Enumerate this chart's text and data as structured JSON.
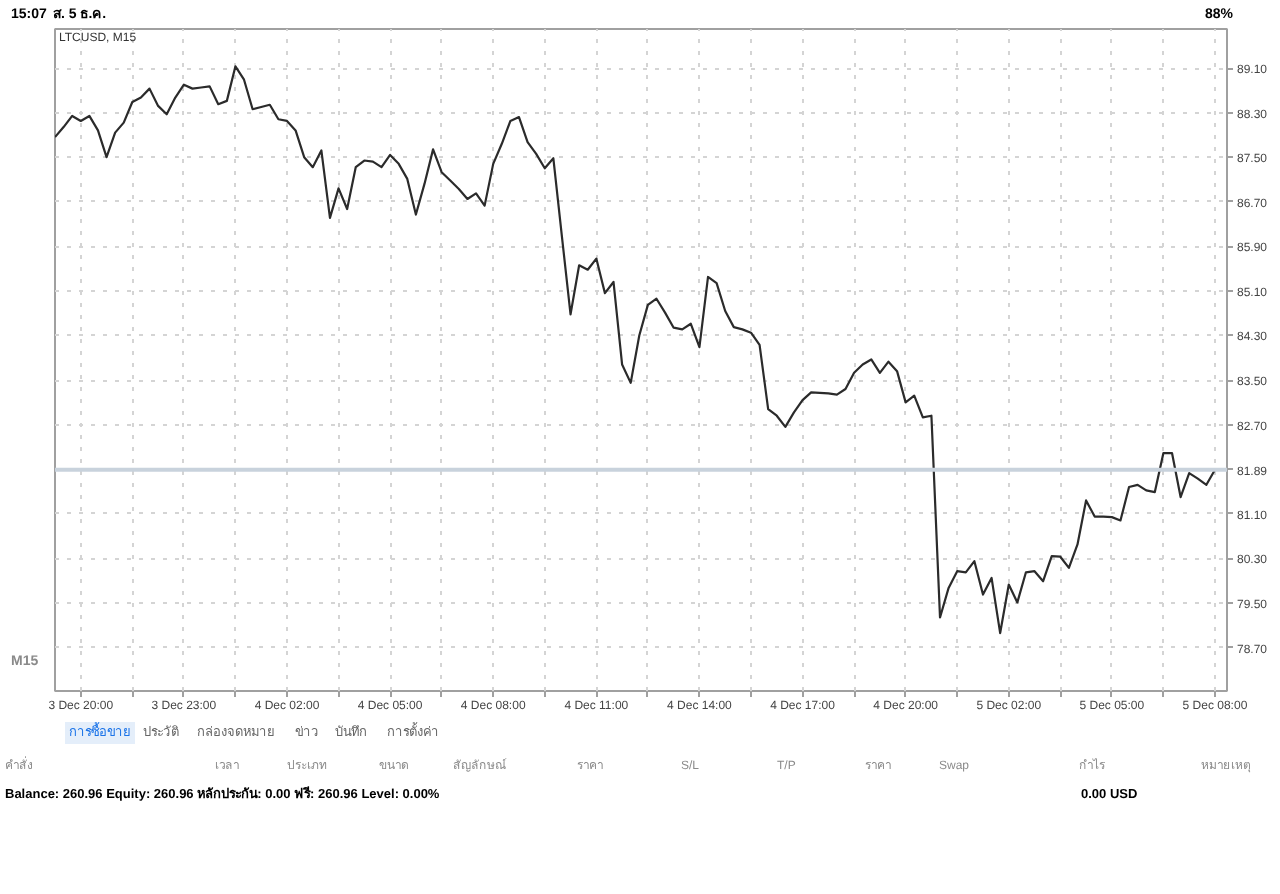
{
  "chart_data": {
    "type": "line",
    "title": "LTCUSD, M15",
    "color": "#2b2b2b",
    "line_style": "solid",
    "grid": true,
    "categories": [
      null,
      null,
      null,
      "3 Dec 20:00",
      null,
      null,
      null,
      null,
      null,
      null,
      null,
      null,
      null,
      null,
      null,
      "3 Dec 23:00",
      null,
      null,
      null,
      null,
      null,
      null,
      null,
      null,
      null,
      null,
      null,
      "4 Dec 02:00",
      null,
      null,
      null,
      null,
      null,
      null,
      null,
      null,
      null,
      null,
      null,
      "4 Dec 05:00",
      null,
      null,
      null,
      null,
      null,
      null,
      null,
      null,
      null,
      null,
      null,
      "4 Dec 08:00",
      null,
      null,
      null,
      null,
      null,
      null,
      null,
      null,
      null,
      null,
      null,
      "4 Dec 11:00",
      null,
      null,
      null,
      null,
      null,
      null,
      null,
      null,
      null,
      null,
      null,
      "4 Dec 14:00",
      null,
      null,
      null,
      null,
      null,
      null,
      null,
      null,
      null,
      null,
      null,
      "4 Dec 17:00",
      null,
      null,
      null,
      null,
      null,
      null,
      null,
      null,
      null,
      null,
      null,
      "4 Dec 20:00",
      null,
      null,
      null,
      null,
      null,
      null,
      null,
      null,
      null,
      null,
      null,
      "5 Dec 02:00",
      null,
      null,
      null,
      null,
      null,
      null,
      null,
      null,
      null,
      null,
      null,
      "5 Dec 05:00",
      null,
      null,
      null,
      null,
      null,
      null,
      null,
      null,
      null,
      null,
      null,
      "5 Dec 08:00"
    ],
    "values": [
      87.86,
      88.04,
      88.24,
      88.15,
      88.24,
      87.98,
      87.5,
      87.94,
      88.12,
      88.49,
      88.57,
      88.73,
      88.42,
      88.27,
      88.57,
      88.8,
      88.73,
      88.75,
      88.77,
      88.45,
      88.51,
      89.13,
      88.89,
      88.36,
      88.4,
      88.44,
      88.18,
      88.15,
      87.98,
      87.5,
      87.32,
      87.62,
      86.41,
      86.94,
      86.57,
      87.32,
      87.44,
      87.42,
      87.32,
      87.54,
      87.38,
      87.11,
      86.47,
      87.02,
      87.64,
      87.23,
      87.08,
      86.93,
      86.75,
      86.85,
      86.63,
      87.38,
      87.74,
      88.15,
      88.22,
      87.77,
      87.56,
      87.3,
      87.48,
      86.07,
      84.68,
      85.56,
      85.48,
      85.68,
      85.06,
      85.26,
      83.78,
      83.45,
      84.3,
      84.85,
      84.96,
      84.71,
      84.44,
      84.41,
      84.51,
      84.09,
      85.35,
      85.24,
      84.74,
      84.45,
      84.41,
      84.35,
      84.13,
      82.98,
      82.86,
      82.66,
      82.92,
      83.14,
      83.28,
      83.27,
      83.26,
      83.24,
      83.34,
      83.63,
      83.78,
      83.87,
      83.63,
      83.83,
      83.66,
      83.1,
      83.22,
      82.83,
      82.86,
      79.24,
      79.77,
      80.07,
      80.05,
      80.25,
      79.65,
      79.95,
      78.96,
      79.83,
      79.51,
      80.05,
      80.07,
      79.89,
      80.34,
      80.33,
      80.13,
      80.55,
      81.34,
      81.05,
      81.05,
      81.04,
      80.98,
      81.58,
      81.62,
      81.52,
      81.49,
      82.19,
      82.19,
      81.4,
      81.83,
      81.73,
      81.62,
      81.89
    ],
    "ylim": [
      77.92,
      89.8
    ],
    "yticks": [
      {
        "value": 89.1,
        "label": "89.10"
      },
      {
        "value": 88.3,
        "label": "88.30"
      },
      {
        "value": 87.5,
        "label": "87.50"
      },
      {
        "value": 86.7,
        "label": "86.70"
      },
      {
        "value": 85.9,
        "label": "85.90"
      },
      {
        "value": 85.1,
        "label": "85.10"
      },
      {
        "value": 84.3,
        "label": "84.30"
      },
      {
        "value": 83.5,
        "label": "83.50"
      },
      {
        "value": 82.7,
        "label": "82.70"
      },
      {
        "value": 81.1,
        "label": "81.10"
      },
      {
        "value": 80.3,
        "label": "80.30"
      },
      {
        "value": 79.5,
        "label": "79.50"
      },
      {
        "value": 78.7,
        "label": "78.70"
      }
    ],
    "ref_lines": [
      {
        "axis": "y",
        "value": 81.89,
        "label": "81.89",
        "color": "#c8d2dc"
      }
    ],
    "annotations": [
      "15:07",
      "ส. 5 ธ.ค.",
      "88%",
      "M15",
      "การซื้อขาย",
      "ประวัติ",
      "กล่องจดหมาย",
      "ข่าว",
      "บันทึก",
      "การตั้งค่า",
      "คำสั่ง",
      "เวลา",
      "ประเภท",
      "ขนาด",
      "สัญลักษณ์",
      "ราคา",
      "S/L",
      "T/P",
      "ราคา",
      "Swap",
      "กำไร",
      "หมายเหตุ",
      "Balance: 260.96 Equity: 260.96 หลักประกัน: 0.00 ฟรี: 260.96 Level: 0.00%",
      "0.00 USD"
    ]
  }
}
